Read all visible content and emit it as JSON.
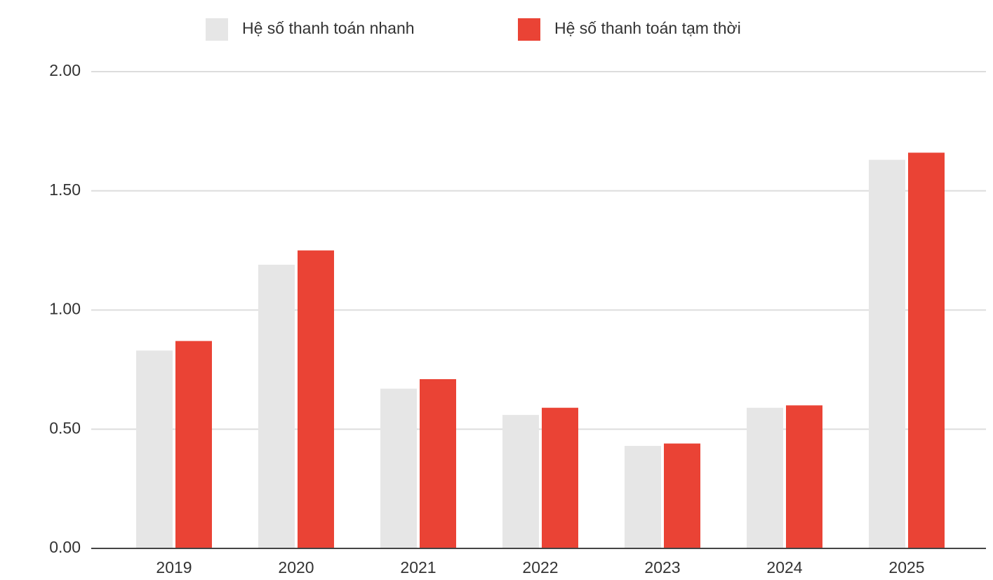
{
  "chart_data": {
    "type": "bar",
    "categories": [
      "2019",
      "2020",
      "2021",
      "2022",
      "2023",
      "2024",
      "2025"
    ],
    "series": [
      {
        "name": "Hệ số thanh toán nhanh",
        "color": "#e6e6e6",
        "values": [
          0.83,
          1.19,
          0.67,
          0.56,
          0.43,
          0.59,
          1.63
        ]
      },
      {
        "name": "Hệ số thanh toán tạm thời",
        "color": "#ea4335",
        "values": [
          0.87,
          1.25,
          0.71,
          0.59,
          0.44,
          0.6,
          1.66
        ]
      }
    ],
    "ylim": [
      0,
      2
    ],
    "yticks": [
      {
        "value": 0,
        "label": "0.00"
      },
      {
        "value": 0.5,
        "label": "0.50"
      },
      {
        "value": 1,
        "label": "1.00"
      },
      {
        "value": 1.5,
        "label": "1.50"
      },
      {
        "value": 2,
        "label": "2.00"
      }
    ],
    "grid": true,
    "legend": "top"
  }
}
